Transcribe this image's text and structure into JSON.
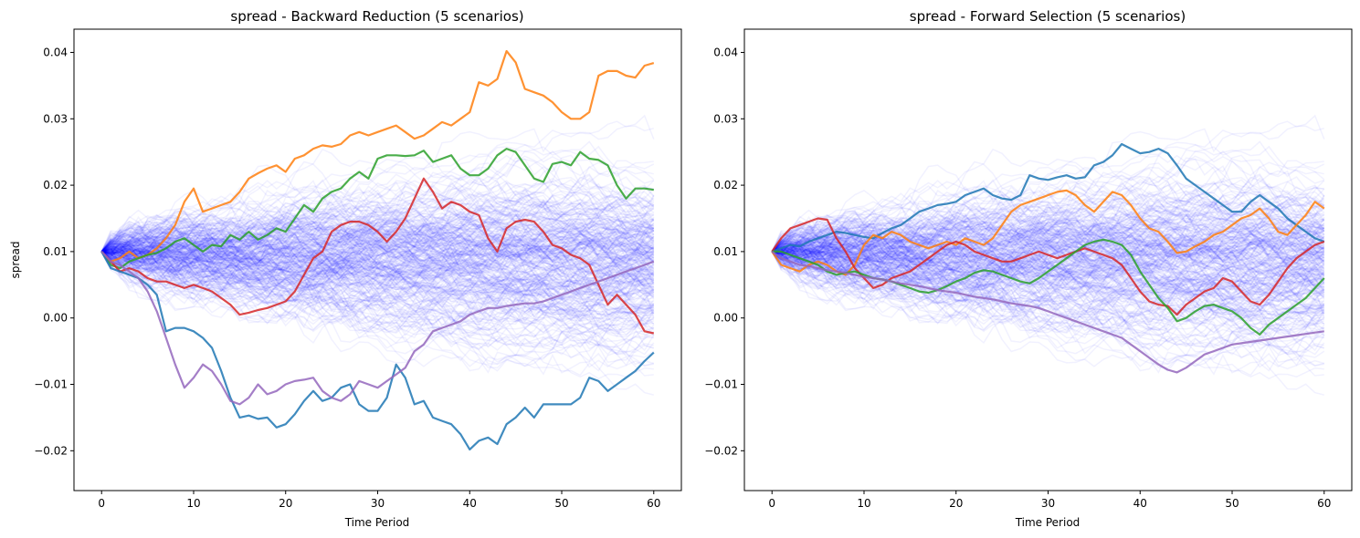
{
  "chart_data": [
    {
      "type": "line",
      "title": "spread - Backward Reduction (5 scenarios)",
      "xlabel": "Time Period",
      "ylabel": "spread",
      "xlim": [
        -3,
        63
      ],
      "ylim": [
        -0.026,
        0.0435
      ],
      "x_ticks": [
        0,
        10,
        20,
        30,
        40,
        50,
        60
      ],
      "y_ticks": [
        -0.02,
        -0.01,
        0.0,
        0.01,
        0.02,
        0.03,
        0.04
      ],
      "y_tick_labels": [
        "−0.02",
        "−0.01",
        "0.00",
        "0.01",
        "0.02",
        "0.03",
        "0.04"
      ],
      "background_paths": {
        "color": "#0000ff",
        "count": 300,
        "start": 0.01,
        "periods": 60
      },
      "series": [
        {
          "color": "#ff7f0e",
          "values": [
            0.01,
            0.0085,
            0.009,
            0.01,
            0.009,
            0.0095,
            0.0105,
            0.012,
            0.014,
            0.0175,
            0.0195,
            0.016,
            0.0165,
            0.017,
            0.0175,
            0.019,
            0.021,
            0.0218,
            0.0225,
            0.023,
            0.022,
            0.024,
            0.0245,
            0.0255,
            0.026,
            0.0258,
            0.0262,
            0.0275,
            0.028,
            0.0275,
            0.028,
            0.0285,
            0.029,
            0.028,
            0.027,
            0.0275,
            0.0285,
            0.0295,
            0.029,
            0.03,
            0.031,
            0.0355,
            0.035,
            0.036,
            0.0402,
            0.0385,
            0.0345,
            0.034,
            0.0335,
            0.0325,
            0.031,
            0.03,
            0.03,
            0.031,
            0.0365,
            0.0372,
            0.0372,
            0.0365,
            0.0362,
            0.038,
            0.0384
          ]
        },
        {
          "color": "#2ca02c",
          "values": [
            0.01,
            0.008,
            0.0075,
            0.0085,
            0.009,
            0.0095,
            0.0098,
            0.0105,
            0.0115,
            0.012,
            0.011,
            0.01,
            0.011,
            0.0108,
            0.0125,
            0.0118,
            0.013,
            0.0118,
            0.0125,
            0.0135,
            0.013,
            0.015,
            0.017,
            0.016,
            0.018,
            0.019,
            0.0195,
            0.021,
            0.022,
            0.021,
            0.024,
            0.0245,
            0.0245,
            0.0244,
            0.0245,
            0.0252,
            0.0235,
            0.024,
            0.0245,
            0.0225,
            0.0215,
            0.0215,
            0.0225,
            0.0245,
            0.0255,
            0.025,
            0.023,
            0.021,
            0.0205,
            0.0232,
            0.0235,
            0.023,
            0.025,
            0.024,
            0.0238,
            0.023,
            0.02,
            0.018,
            0.0195,
            0.0195,
            0.0193
          ]
        },
        {
          "color": "#d62728",
          "values": [
            0.01,
            0.0085,
            0.007,
            0.0075,
            0.007,
            0.006,
            0.0055,
            0.0055,
            0.005,
            0.0045,
            0.005,
            0.0045,
            0.004,
            0.003,
            0.002,
            0.0005,
            0.0008,
            0.0012,
            0.0015,
            0.002,
            0.0025,
            0.004,
            0.0065,
            0.009,
            0.01,
            0.013,
            0.014,
            0.0145,
            0.0145,
            0.014,
            0.013,
            0.0115,
            0.013,
            0.015,
            0.018,
            0.021,
            0.019,
            0.0165,
            0.0175,
            0.017,
            0.016,
            0.0155,
            0.012,
            0.01,
            0.0135,
            0.0145,
            0.0148,
            0.0145,
            0.013,
            0.011,
            0.0105,
            0.0095,
            0.009,
            0.008,
            0.005,
            0.002,
            0.0035,
            0.002,
            0.0005,
            -0.002,
            -0.0023
          ]
        },
        {
          "color": "#1f77b4",
          "values": [
            0.01,
            0.0075,
            0.007,
            0.0065,
            0.006,
            0.005,
            0.0035,
            -0.002,
            -0.0015,
            -0.0015,
            -0.002,
            -0.003,
            -0.0045,
            -0.008,
            -0.012,
            -0.015,
            -0.0147,
            -0.0152,
            -0.015,
            -0.0165,
            -0.016,
            -0.0145,
            -0.0125,
            -0.011,
            -0.0125,
            -0.012,
            -0.0105,
            -0.01,
            -0.013,
            -0.014,
            -0.014,
            -0.012,
            -0.007,
            -0.009,
            -0.013,
            -0.0125,
            -0.015,
            -0.0155,
            -0.016,
            -0.0175,
            -0.0198,
            -0.0185,
            -0.018,
            -0.019,
            -0.016,
            -0.015,
            -0.0135,
            -0.015,
            -0.013,
            -0.013,
            -0.013,
            -0.013,
            -0.012,
            -0.009,
            -0.0095,
            -0.011,
            -0.01,
            -0.009,
            -0.008,
            -0.0065,
            -0.0052
          ]
        },
        {
          "color": "#9467bd",
          "values": [
            0.01,
            0.0085,
            0.008,
            0.007,
            0.006,
            0.004,
            0.001,
            -0.003,
            -0.007,
            -0.0105,
            -0.009,
            -0.007,
            -0.008,
            -0.01,
            -0.0125,
            -0.013,
            -0.012,
            -0.01,
            -0.0115,
            -0.011,
            -0.01,
            -0.0095,
            -0.0093,
            -0.009,
            -0.011,
            -0.012,
            -0.0125,
            -0.0115,
            -0.0095,
            -0.01,
            -0.0105,
            -0.0095,
            -0.0085,
            -0.0075,
            -0.005,
            -0.004,
            -0.002,
            -0.0015,
            -0.001,
            -0.0005,
            0.0005,
            0.001,
            0.0015,
            0.0015,
            0.0018,
            0.002,
            0.0022,
            0.0022,
            0.0025,
            0.003,
            0.0035,
            0.004,
            0.0045,
            0.005,
            0.0055,
            0.006,
            0.0065,
            0.007,
            0.0075,
            0.008,
            0.0085
          ]
        }
      ]
    },
    {
      "type": "line",
      "title": "spread - Forward Selection (5 scenarios)",
      "xlabel": "Time Period",
      "ylabel": "",
      "xlim": [
        -3,
        63
      ],
      "ylim": [
        -0.026,
        0.0435
      ],
      "x_ticks": [
        0,
        10,
        20,
        30,
        40,
        50,
        60
      ],
      "y_ticks": [
        -0.02,
        -0.01,
        0.0,
        0.01,
        0.02,
        0.03,
        0.04
      ],
      "y_tick_labels": [
        "−0.02",
        "−0.01",
        "0.00",
        "0.01",
        "0.02",
        "0.03",
        "0.04"
      ],
      "background_paths": {
        "color": "#0000ff",
        "count": 300,
        "start": 0.01,
        "periods": 60
      },
      "series": [
        {
          "color": "#1f77b4",
          "values": [
            0.01,
            0.0105,
            0.011,
            0.0108,
            0.0115,
            0.012,
            0.0125,
            0.013,
            0.0128,
            0.0125,
            0.0122,
            0.012,
            0.0128,
            0.0135,
            0.014,
            0.015,
            0.016,
            0.0165,
            0.017,
            0.0172,
            0.0175,
            0.0185,
            0.019,
            0.0195,
            0.0185,
            0.018,
            0.0178,
            0.0185,
            0.0215,
            0.021,
            0.0208,
            0.0212,
            0.0215,
            0.021,
            0.0212,
            0.023,
            0.0235,
            0.0245,
            0.0262,
            0.0255,
            0.0248,
            0.025,
            0.0255,
            0.0248,
            0.023,
            0.021,
            0.02,
            0.019,
            0.018,
            0.017,
            0.016,
            0.016,
            0.0175,
            0.0185,
            0.0175,
            0.0165,
            0.015,
            0.014,
            0.013,
            0.012,
            0.0115
          ]
        },
        {
          "color": "#ff7f0e",
          "values": [
            0.01,
            0.008,
            0.0075,
            0.007,
            0.008,
            0.0085,
            0.008,
            0.007,
            0.0065,
            0.008,
            0.011,
            0.0125,
            0.012,
            0.013,
            0.0125,
            0.0115,
            0.011,
            0.0105,
            0.011,
            0.0115,
            0.011,
            0.012,
            0.0115,
            0.011,
            0.012,
            0.014,
            0.016,
            0.017,
            0.0175,
            0.018,
            0.0185,
            0.019,
            0.0192,
            0.0185,
            0.017,
            0.016,
            0.0175,
            0.019,
            0.0185,
            0.017,
            0.015,
            0.0135,
            0.013,
            0.0115,
            0.0098,
            0.01,
            0.0108,
            0.0115,
            0.0125,
            0.013,
            0.014,
            0.015,
            0.0155,
            0.0165,
            0.015,
            0.013,
            0.0125,
            0.014,
            0.0155,
            0.0175,
            0.0165
          ]
        },
        {
          "color": "#d62728",
          "values": [
            0.01,
            0.012,
            0.0135,
            0.014,
            0.0145,
            0.015,
            0.0148,
            0.012,
            0.01,
            0.0075,
            0.006,
            0.0045,
            0.005,
            0.006,
            0.0065,
            0.007,
            0.008,
            0.009,
            0.01,
            0.011,
            0.0115,
            0.011,
            0.01,
            0.0095,
            0.009,
            0.0085,
            0.0085,
            0.009,
            0.0095,
            0.01,
            0.0095,
            0.009,
            0.0095,
            0.01,
            0.0105,
            0.01,
            0.0095,
            0.009,
            0.008,
            0.006,
            0.004,
            0.0025,
            0.002,
            0.0018,
            0.0005,
            0.002,
            0.003,
            0.004,
            0.0045,
            0.006,
            0.0055,
            0.004,
            0.0025,
            0.002,
            0.0035,
            0.0055,
            0.0075,
            0.009,
            0.01,
            0.011,
            0.0115
          ]
        },
        {
          "color": "#2ca02c",
          "values": [
            0.01,
            0.01,
            0.0095,
            0.009,
            0.0085,
            0.008,
            0.007,
            0.0065,
            0.0068,
            0.007,
            0.0065,
            0.006,
            0.0058,
            0.0055,
            0.005,
            0.0045,
            0.004,
            0.0038,
            0.0042,
            0.0048,
            0.0055,
            0.006,
            0.0068,
            0.0072,
            0.007,
            0.0065,
            0.006,
            0.0055,
            0.0052,
            0.006,
            0.007,
            0.008,
            0.009,
            0.01,
            0.011,
            0.0115,
            0.0118,
            0.0115,
            0.011,
            0.0095,
            0.007,
            0.005,
            0.003,
            0.0015,
            -0.0005,
            0.0,
            0.001,
            0.0018,
            0.002,
            0.0015,
            0.001,
            0.0,
            -0.0015,
            -0.0025,
            -0.001,
            0.0,
            0.001,
            0.002,
            0.003,
            0.0045,
            0.006
          ]
        },
        {
          "color": "#9467bd",
          "values": [
            0.01,
            0.009,
            0.0085,
            0.008,
            0.0078,
            0.0075,
            0.0072,
            0.007,
            0.0068,
            0.0065,
            0.0062,
            0.006,
            0.0058,
            0.0055,
            0.0052,
            0.005,
            0.0048,
            0.0045,
            0.0042,
            0.004,
            0.0038,
            0.0035,
            0.0032,
            0.003,
            0.0028,
            0.0025,
            0.0022,
            0.002,
            0.0018,
            0.0015,
            0.001,
            0.0005,
            0.0,
            -0.0005,
            -0.001,
            -0.0015,
            -0.002,
            -0.0025,
            -0.003,
            -0.004,
            -0.005,
            -0.006,
            -0.007,
            -0.0078,
            -0.0082,
            -0.0075,
            -0.0065,
            -0.0055,
            -0.005,
            -0.0045,
            -0.004,
            -0.0038,
            -0.0036,
            -0.0034,
            -0.0032,
            -0.003,
            -0.0028,
            -0.0026,
            -0.0024,
            -0.0022,
            -0.002
          ]
        }
      ]
    }
  ]
}
